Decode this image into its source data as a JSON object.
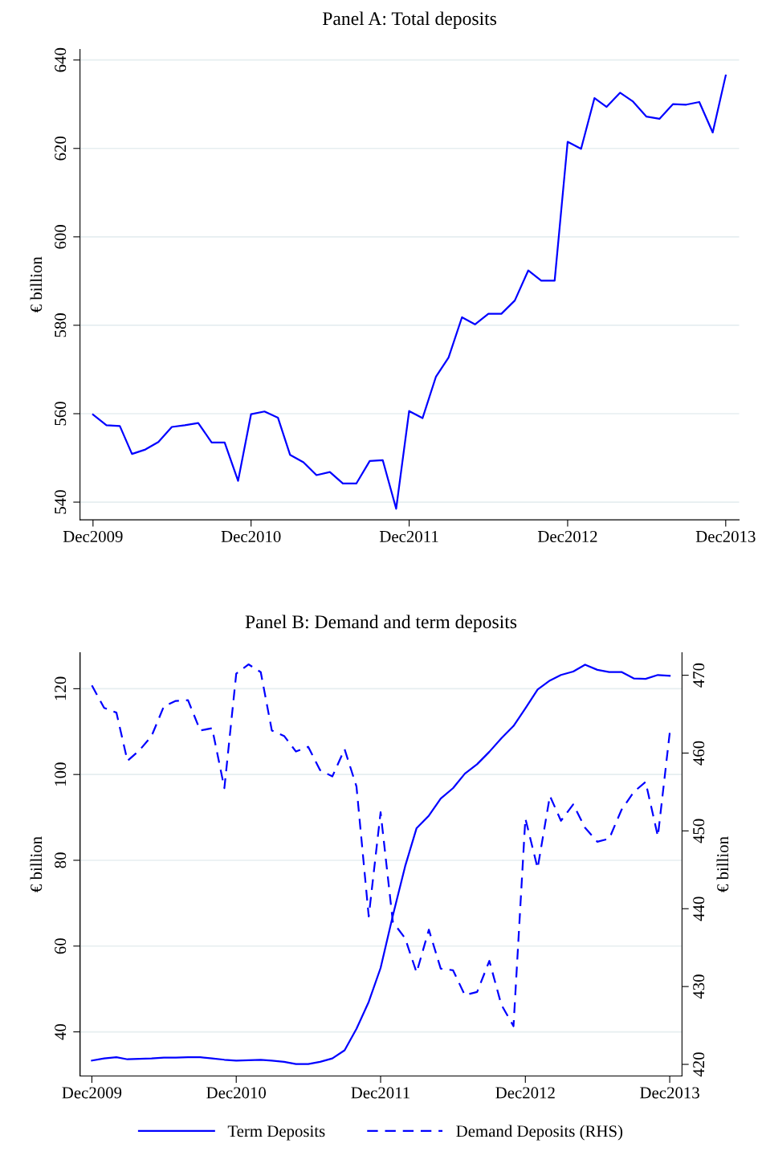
{
  "chart_data": [
    {
      "type": "line",
      "title": "Panel A: Total deposits",
      "ylabel": "€ billion",
      "x": [
        "2009-12",
        "2010-01",
        "2010-02",
        "2010-03",
        "2010-04",
        "2010-05",
        "2010-06",
        "2010-07",
        "2010-08",
        "2010-09",
        "2010-10",
        "2010-11",
        "2010-12",
        "2011-01",
        "2011-02",
        "2011-03",
        "2011-04",
        "2011-05",
        "2011-06",
        "2011-07",
        "2011-08",
        "2011-09",
        "2011-10",
        "2011-11",
        "2011-12",
        "2012-01",
        "2012-02",
        "2012-03",
        "2012-04",
        "2012-05",
        "2012-06",
        "2012-07",
        "2012-08",
        "2012-09",
        "2012-10",
        "2012-11",
        "2012-12",
        "2013-01",
        "2013-02",
        "2013-03",
        "2013-04",
        "2013-05",
        "2013-06",
        "2013-07",
        "2013-08",
        "2013-09",
        "2013-10",
        "2013-11",
        "2013-12"
      ],
      "series": [
        {
          "color": "#0000ff",
          "line_style": "solid",
          "values": [
            559.8,
            557.4,
            557.2,
            550.9,
            551.9,
            553.6,
            557.0,
            557.4,
            557.9,
            553.5,
            553.5,
            544.8,
            559.9,
            560.5,
            559.1,
            550.7,
            549.0,
            546.1,
            546.8,
            544.2,
            544.2,
            549.3,
            549.5,
            538.5,
            560.6,
            559.0,
            568.4,
            572.7,
            581.8,
            580.2,
            582.6,
            582.6,
            585.6,
            592.4,
            590.1,
            590.1,
            621.5,
            619.9,
            631.4,
            629.4,
            632.6,
            630.6,
            627.2,
            626.7,
            630.0,
            629.9,
            630.5,
            623.6,
            636.5
          ]
        }
      ],
      "xlim": [
        "2009-11",
        "2014-01"
      ],
      "xticks": [
        {
          "value": "2009-12",
          "label": "Dec2009"
        },
        {
          "value": "2010-12",
          "label": "Dec2010"
        },
        {
          "value": "2011-12",
          "label": "Dec2011"
        },
        {
          "value": "2012-12",
          "label": "Dec2012"
        },
        {
          "value": "2013-12",
          "label": "Dec2013"
        }
      ],
      "ylim": [
        536,
        642.4
      ],
      "yticks": [
        540,
        560,
        580,
        600,
        620,
        640
      ],
      "grid": "y",
      "marker": "none",
      "legend": false
    },
    {
      "type": "line",
      "title": "Panel B: Demand and term deposits",
      "ylabel": "€ billion",
      "y2label": "€ billion",
      "x": [
        "2009-12",
        "2010-01",
        "2010-02",
        "2010-03",
        "2010-04",
        "2010-05",
        "2010-06",
        "2010-07",
        "2010-08",
        "2010-09",
        "2010-10",
        "2010-11",
        "2010-12",
        "2011-01",
        "2011-02",
        "2011-03",
        "2011-04",
        "2011-05",
        "2011-06",
        "2011-07",
        "2011-08",
        "2011-09",
        "2011-10",
        "2011-11",
        "2011-12",
        "2012-01",
        "2012-02",
        "2012-03",
        "2012-04",
        "2012-05",
        "2012-06",
        "2012-07",
        "2012-08",
        "2012-09",
        "2012-10",
        "2012-11",
        "2012-12",
        "2013-01",
        "2013-02",
        "2013-03",
        "2013-04",
        "2013-05",
        "2013-06",
        "2013-07",
        "2013-08",
        "2013-09",
        "2013-10",
        "2013-11",
        "2013-12"
      ],
      "series": [
        {
          "name": "Term Deposits",
          "color": "#0000ff",
          "line_style": "solid",
          "values": [
            33.3,
            33.8,
            34.1,
            33.6,
            33.7,
            33.8,
            34.0,
            34.0,
            34.1,
            34.1,
            33.8,
            33.5,
            33.3,
            33.4,
            33.5,
            33.3,
            33.0,
            32.5,
            32.5,
            33.0,
            33.8,
            35.7,
            40.7,
            47.0,
            54.9,
            67.1,
            78.6,
            87.5,
            90.4,
            94.4,
            96.8,
            100.2,
            102.4,
            105.3,
            108.4,
            111.3,
            115.4,
            119.8,
            121.9,
            123.2,
            124.0,
            125.6,
            124.4,
            123.9,
            123.9,
            122.4,
            122.3,
            123.2,
            123.0
          ]
        },
        {
          "name": "Demand Deposits (RHS)",
          "color": "#0000ff",
          "line_style": "dashed",
          "axis": "y2",
          "values": [
            468.7,
            465.8,
            465.2,
            459.0,
            460.4,
            462.2,
            466.0,
            466.7,
            466.8,
            462.9,
            463.2,
            455.5,
            470.2,
            471.4,
            470.4,
            462.9,
            462.2,
            460.2,
            460.8,
            457.8,
            457.0,
            460.5,
            455.7,
            439.0,
            452.4,
            438.3,
            436.2,
            431.8,
            437.3,
            432.3,
            432.1,
            428.9,
            429.3,
            433.3,
            427.7,
            424.9,
            451.6,
            445.2,
            454.5,
            451.3,
            453.4,
            450.4,
            448.6,
            449.0,
            452.7,
            455.0,
            456.3,
            449.3,
            462.6
          ]
        }
      ],
      "xlim": [
        "2009-11",
        "2014-01"
      ],
      "xticks": [
        {
          "value": "2009-12",
          "label": "Dec2009"
        },
        {
          "value": "2010-12",
          "label": "Dec2010"
        },
        {
          "value": "2011-12",
          "label": "Dec2011"
        },
        {
          "value": "2012-12",
          "label": "Dec2012"
        },
        {
          "value": "2013-12",
          "label": "Dec2013"
        }
      ],
      "ylim": [
        29.7,
        128.4
      ],
      "yticks": [
        40,
        60,
        80,
        100,
        120
      ],
      "y2lim": [
        418.5,
        472.9
      ],
      "y2ticks": [
        420,
        430,
        440,
        450,
        460,
        470
      ],
      "grid": "y",
      "marker": "none",
      "legend": "bottom"
    }
  ]
}
